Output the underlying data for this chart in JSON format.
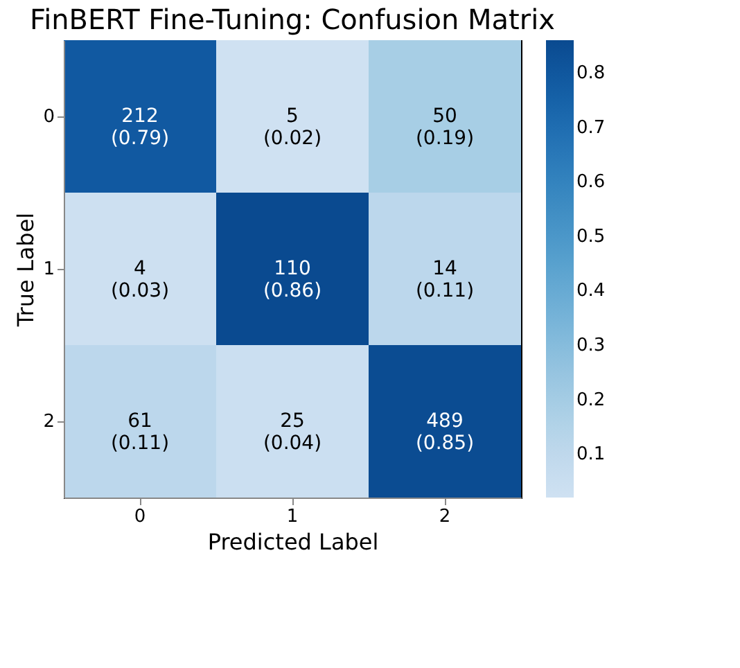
{
  "chart_data": {
    "type": "heatmap",
    "title": "FinBERT Fine-Tuning: Confusion Matrix",
    "xlabel": "Predicted Label",
    "ylabel": "True Label",
    "categories": [
      "0",
      "1",
      "2"
    ],
    "y_categories": [
      "0",
      "1",
      "2"
    ],
    "cells": [
      [
        0.79,
        0.02,
        0.19
      ],
      [
        0.03,
        0.86,
        0.11
      ],
      [
        0.11,
        0.04,
        0.85
      ]
    ],
    "cell_labels": [
      [
        "212\n(0.79)",
        "5\n(0.02)",
        "50\n(0.19)"
      ],
      [
        "4\n(0.03)",
        "110\n(0.86)",
        "14\n(0.11)"
      ],
      [
        "61\n(0.11)",
        "25\n(0.04)",
        "489\n(0.85)"
      ]
    ],
    "clim": [
      0.02,
      0.86
    ],
    "cticks": [
      0.1,
      0.2,
      0.3,
      0.4,
      0.5,
      0.6,
      0.7,
      0.8
    ]
  }
}
